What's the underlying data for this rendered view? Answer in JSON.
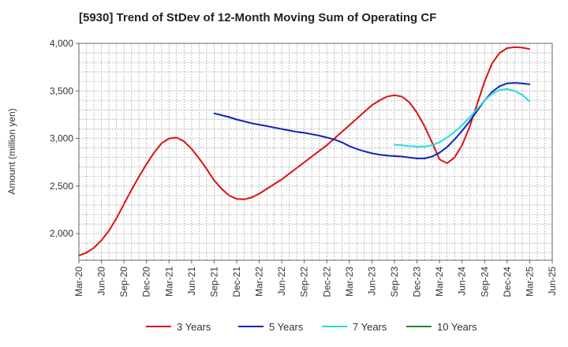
{
  "chart_data": {
    "type": "line",
    "title": "[5930]  Trend of StDev of 12-Month Moving Sum of Operating CF",
    "xlabel": "",
    "ylabel": "Amount (million yen)",
    "ylim": [
      1720,
      4000
    ],
    "xlim": [
      "Mar-20",
      "Mar-25"
    ],
    "y_ticks": [
      2000,
      2500,
      3000,
      3500,
      4000
    ],
    "y_tick_labels": [
      "2,000",
      "2,500",
      "3,000",
      "3,500",
      "4,000"
    ],
    "x_tick_labels": [
      "Mar-20",
      "Jun-20",
      "Sep-20",
      "Dec-20",
      "Mar-21",
      "Jun-21",
      "Sep-21",
      "Dec-21",
      "Mar-22",
      "Jun-22",
      "Sep-22",
      "Dec-22",
      "Mar-23",
      "Jun-23",
      "Sep-23",
      "Dec-23",
      "Mar-24",
      "Jun-24",
      "Sep-24",
      "Dec-24",
      "Mar-25",
      "Jun-25"
    ],
    "grid": true,
    "legend_position": "bottom",
    "series": [
      {
        "name": "3 Years",
        "color": "#dd1111",
        "points": [
          [
            "Mar-20",
            1770
          ],
          [
            "Apr-20",
            1800
          ],
          [
            "May-20",
            1850
          ],
          [
            "Jun-20",
            1930
          ],
          [
            "Jul-20",
            2030
          ],
          [
            "Aug-20",
            2160
          ],
          [
            "Sep-20",
            2310
          ],
          [
            "Oct-20",
            2460
          ],
          [
            "Nov-20",
            2600
          ],
          [
            "Dec-20",
            2730
          ],
          [
            "Jan-21",
            2850
          ],
          [
            "Feb-21",
            2950
          ],
          [
            "Mar-21",
            3000
          ],
          [
            "Apr-21",
            3010
          ],
          [
            "May-21",
            2970
          ],
          [
            "Jun-21",
            2890
          ],
          [
            "Jul-21",
            2790
          ],
          [
            "Aug-21",
            2680
          ],
          [
            "Sep-21",
            2560
          ],
          [
            "Oct-21",
            2470
          ],
          [
            "Nov-21",
            2400
          ],
          [
            "Dec-21",
            2365
          ],
          [
            "Jan-22",
            2360
          ],
          [
            "Feb-22",
            2380
          ],
          [
            "Mar-22",
            2420
          ],
          [
            "Apr-22",
            2470
          ],
          [
            "May-22",
            2520
          ],
          [
            "Jun-22",
            2570
          ],
          [
            "Jul-22",
            2630
          ],
          [
            "Aug-22",
            2690
          ],
          [
            "Sep-22",
            2750
          ],
          [
            "Oct-22",
            2810
          ],
          [
            "Nov-22",
            2870
          ],
          [
            "Dec-22",
            2930
          ],
          [
            "Jan-23",
            3000
          ],
          [
            "Feb-23",
            3070
          ],
          [
            "Mar-23",
            3140
          ],
          [
            "Apr-23",
            3210
          ],
          [
            "May-23",
            3280
          ],
          [
            "Jun-23",
            3350
          ],
          [
            "Jul-23",
            3400
          ],
          [
            "Aug-23",
            3440
          ],
          [
            "Sep-23",
            3455
          ],
          [
            "Oct-23",
            3440
          ],
          [
            "Nov-23",
            3380
          ],
          [
            "Dec-23",
            3270
          ],
          [
            "Jan-24",
            3130
          ],
          [
            "Feb-24",
            2960
          ],
          [
            "Mar-24",
            2780
          ],
          [
            "Apr-24",
            2740
          ],
          [
            "May-24",
            2800
          ],
          [
            "Jun-24",
            2930
          ],
          [
            "Jul-24",
            3120
          ],
          [
            "Aug-24",
            3360
          ],
          [
            "Sep-24",
            3600
          ],
          [
            "Oct-24",
            3790
          ],
          [
            "Nov-24",
            3900
          ],
          [
            "Dec-24",
            3950
          ],
          [
            "Jan-25",
            3960
          ],
          [
            "Feb-25",
            3955
          ],
          [
            "Mar-25",
            3940
          ]
        ]
      },
      {
        "name": "5 Years",
        "color": "#1122bb",
        "points": [
          [
            "Sep-21",
            3265
          ],
          [
            "Oct-21",
            3245
          ],
          [
            "Nov-21",
            3225
          ],
          [
            "Dec-21",
            3200
          ],
          [
            "Jan-22",
            3180
          ],
          [
            "Feb-22",
            3160
          ],
          [
            "Mar-22",
            3145
          ],
          [
            "Apr-22",
            3130
          ],
          [
            "May-22",
            3115
          ],
          [
            "Jun-22",
            3100
          ],
          [
            "Jul-22",
            3085
          ],
          [
            "Aug-22",
            3070
          ],
          [
            "Sep-22",
            3060
          ],
          [
            "Oct-22",
            3045
          ],
          [
            "Nov-22",
            3030
          ],
          [
            "Dec-22",
            3010
          ],
          [
            "Jan-23",
            2990
          ],
          [
            "Feb-23",
            2960
          ],
          [
            "Mar-23",
            2920
          ],
          [
            "Apr-23",
            2890
          ],
          [
            "May-23",
            2865
          ],
          [
            "Jun-23",
            2845
          ],
          [
            "Jul-23",
            2830
          ],
          [
            "Aug-23",
            2820
          ],
          [
            "Sep-23",
            2815
          ],
          [
            "Oct-23",
            2810
          ],
          [
            "Nov-23",
            2800
          ],
          [
            "Dec-23",
            2790
          ],
          [
            "Jan-24",
            2790
          ],
          [
            "Feb-24",
            2810
          ],
          [
            "Mar-24",
            2850
          ],
          [
            "Apr-24",
            2910
          ],
          [
            "May-24",
            2990
          ],
          [
            "Jun-24",
            3080
          ],
          [
            "Jul-24",
            3180
          ],
          [
            "Aug-24",
            3290
          ],
          [
            "Sep-24",
            3400
          ],
          [
            "Oct-24",
            3490
          ],
          [
            "Nov-24",
            3550
          ],
          [
            "Dec-24",
            3580
          ],
          [
            "Jan-25",
            3585
          ],
          [
            "Feb-25",
            3580
          ],
          [
            "Mar-25",
            3570
          ]
        ]
      },
      {
        "name": "7 Years",
        "color": "#22dddd",
        "points": [
          [
            "Sep-23",
            2935
          ],
          [
            "Oct-23",
            2930
          ],
          [
            "Nov-23",
            2920
          ],
          [
            "Dec-23",
            2915
          ],
          [
            "Jan-24",
            2915
          ],
          [
            "Feb-24",
            2930
          ],
          [
            "Mar-24",
            2960
          ],
          [
            "Apr-24",
            3010
          ],
          [
            "May-24",
            3070
          ],
          [
            "Jun-24",
            3140
          ],
          [
            "Jul-24",
            3220
          ],
          [
            "Aug-24",
            3310
          ],
          [
            "Sep-24",
            3400
          ],
          [
            "Oct-24",
            3470
          ],
          [
            "Nov-24",
            3510
          ],
          [
            "Dec-24",
            3520
          ],
          [
            "Jan-25",
            3500
          ],
          [
            "Feb-25",
            3460
          ],
          [
            "Mar-25",
            3390
          ]
        ]
      },
      {
        "name": "10 Years",
        "color": "#228822",
        "points": []
      }
    ]
  }
}
